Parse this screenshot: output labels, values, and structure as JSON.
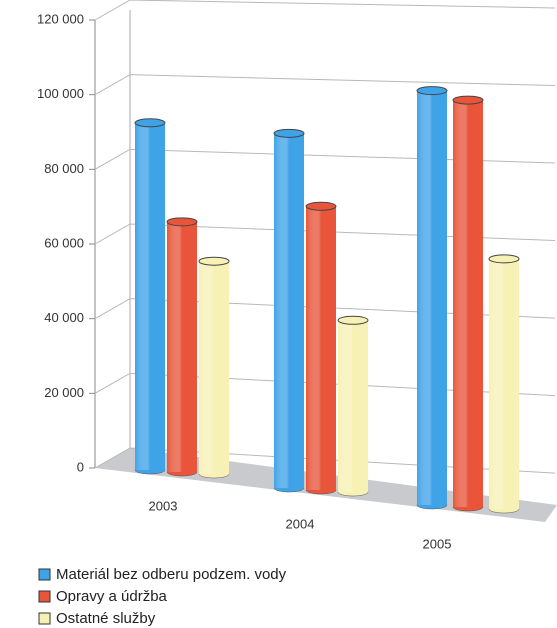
{
  "chart_data": {
    "type": "bar",
    "categories": [
      "2003",
      "2004",
      "2005"
    ],
    "series": [
      {
        "name": "Materiál bez odberu podzem. vody",
        "color": "#3fa3e8",
        "values": [
          93000,
          95000,
          111000
        ]
      },
      {
        "name": "Opravy a údržba",
        "color": "#e8553a",
        "values": [
          67000,
          76000,
          109000
        ]
      },
      {
        "name": "Ostatné služby",
        "color": "#f7f1b5",
        "values": [
          57000,
          46000,
          67000
        ]
      }
    ],
    "ylim": [
      0,
      120000
    ],
    "yticks": [
      0,
      {
        "value": 20000,
        "label": "20 000"
      },
      {
        "value": 40000,
        "label": "40 000"
      },
      {
        "value": 60000,
        "label": "60 000"
      },
      {
        "value": 80000,
        "label": "80 000"
      },
      {
        "value": 100000,
        "label": "100 000"
      },
      {
        "value": 120000,
        "label": "120 000"
      }
    ],
    "grid": true,
    "legend": "bottom"
  }
}
